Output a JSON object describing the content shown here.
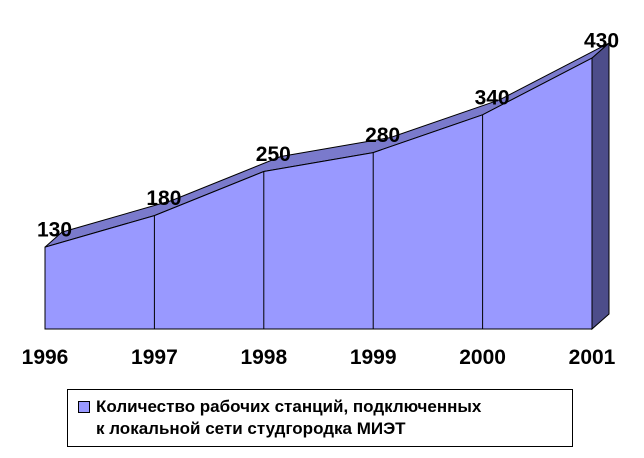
{
  "chart_data": {
    "type": "area",
    "categories": [
      "1996",
      "1997",
      "1998",
      "1999",
      "2000",
      "2001"
    ],
    "series": [
      {
        "name": "Количество рабочих станций, подключенных к локальной сети студгородка МИЭТ",
        "values": [
          130,
          180,
          250,
          280,
          340,
          430
        ]
      }
    ],
    "ylim": [
      0,
      500
    ],
    "grid": false,
    "three_d": true,
    "legend_position": "bottom",
    "colors": {
      "front": "#9999ff",
      "top": "#7a7acc",
      "side": "#4d4d8a",
      "outline": "#000000"
    }
  },
  "legend": {
    "line1": "Количество рабочих станций, подключенных",
    "line2": "к локальной сети студгородка МИЭТ"
  }
}
